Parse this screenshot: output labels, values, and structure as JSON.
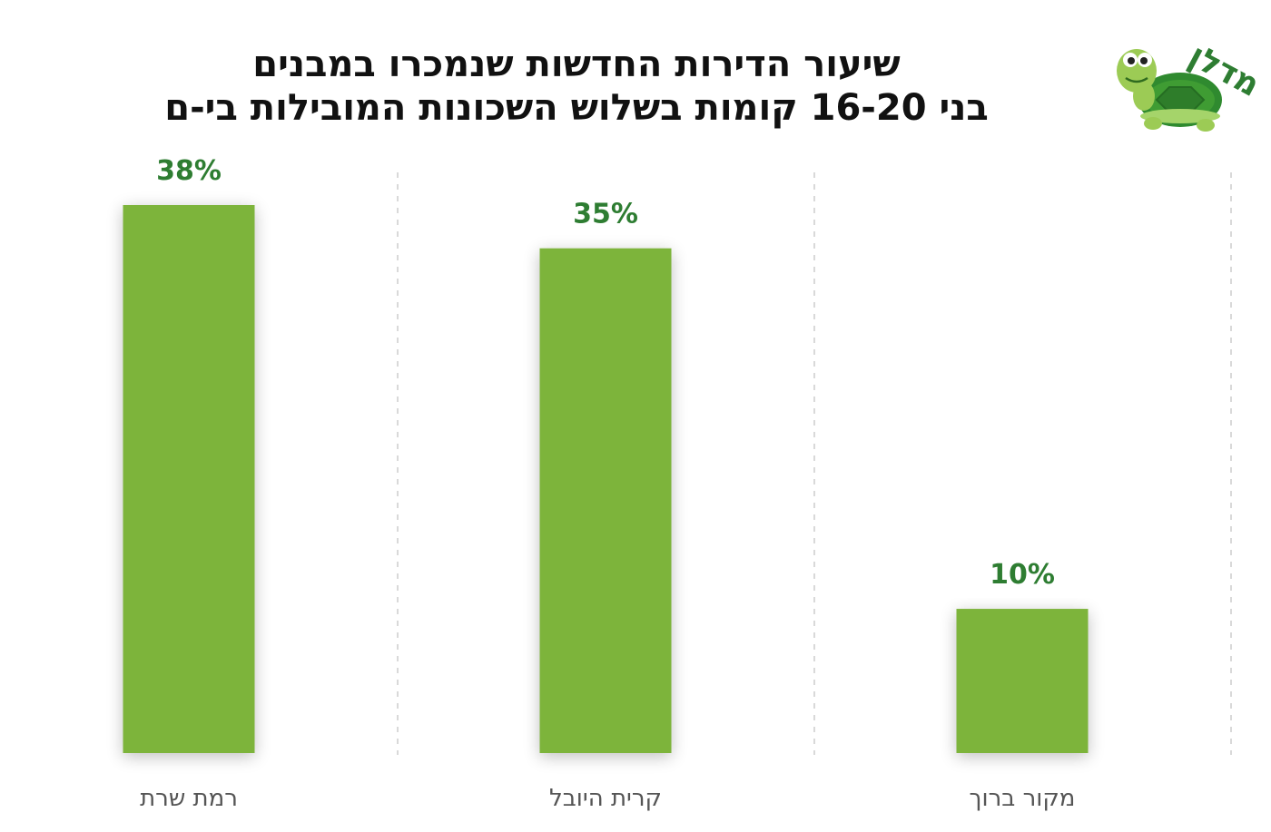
{
  "header": {
    "title_line1": "שיעור הדירות החדשות שנמכרו במבנים",
    "title_line2": "בני 16-20 קומות בשלוש השכונות המובילות בי-ם",
    "logo_text": "מדלן"
  },
  "colors": {
    "bar": "#7db43a",
    "value_label": "#2e7d32",
    "category_label": "#555555",
    "gridline": "#d9d9d9",
    "title": "#111111"
  },
  "chart_data": {
    "type": "bar",
    "title": "שיעור הדירות החדשות שנמכרו במבנים בני 16-20 קומות בשלוש השכונות המובילות בי-ם",
    "categories": [
      "רמת שרת",
      "קרית היובל",
      "מקור ברוך"
    ],
    "values": [
      38,
      35,
      10
    ],
    "value_labels": [
      "38%",
      "35%",
      "10%"
    ],
    "unit": "%",
    "ylim": [
      0,
      38
    ],
    "grid": "vertical dashed separators",
    "legend": "none"
  }
}
